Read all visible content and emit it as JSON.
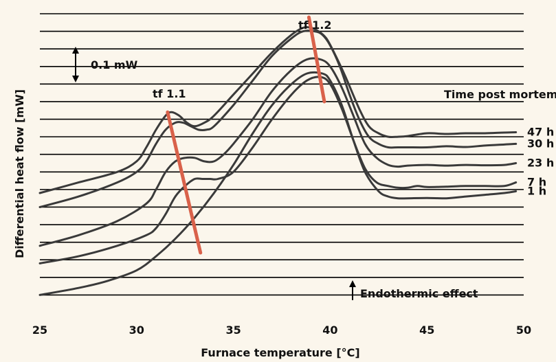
{
  "chart_data": {
    "type": "line",
    "xlabel": "Furnace temperature [°C]",
    "ylabel": "Differential heat flow [mW]",
    "xlim": [
      25,
      50
    ],
    "xticks": [
      25,
      30,
      35,
      40,
      45,
      50
    ],
    "ylim": [
      0,
      0.85
    ],
    "grid": "horizontal",
    "scale_bar": {
      "label": "0.1 mW",
      "value": 0.1
    },
    "legend_title": "Time post mortem",
    "annotations": [
      "Endothermic effect",
      "tf 1.1",
      "tf 1.2"
    ],
    "colors": {
      "curve": "#3a3a3a",
      "marker_line": "#d9614a",
      "background": "#fbf6ec",
      "grid": "#000000"
    },
    "series": [
      {
        "name": "47 h",
        "x": [
          25,
          27,
          29,
          30,
          30.5,
          31,
          31.5,
          31.8,
          32.2,
          32.6,
          33,
          33.5,
          34,
          35,
          36,
          37,
          38,
          38.6,
          39,
          39.4,
          39.8,
          40.2,
          40.8,
          41.5,
          42,
          42.5,
          43,
          43.5,
          44,
          45,
          46,
          47,
          48,
          49,
          49.6
        ],
        "y": [
          0.34,
          0.37,
          0.4,
          0.43,
          0.47,
          0.52,
          0.56,
          0.57,
          0.56,
          0.54,
          0.53,
          0.54,
          0.56,
          0.62,
          0.68,
          0.74,
          0.79,
          0.81,
          0.81,
          0.8,
          0.78,
          0.74,
          0.67,
          0.58,
          0.53,
          0.51,
          0.5,
          0.5,
          0.502,
          0.51,
          0.508,
          0.51,
          0.51,
          0.512,
          0.513
        ]
      },
      {
        "name": "30 h",
        "x": [
          25,
          27,
          29,
          30,
          30.5,
          31,
          31.5,
          32,
          32.4,
          32.8,
          33.2,
          33.6,
          34,
          35,
          36,
          37,
          38,
          38.6,
          39.2,
          39.6,
          40,
          40.5,
          41,
          41.5,
          42,
          42.5,
          43,
          43.5,
          44,
          45,
          46,
          47,
          48,
          49,
          49.6
        ],
        "y": [
          0.3,
          0.33,
          0.37,
          0.4,
          0.43,
          0.48,
          0.52,
          0.54,
          0.54,
          0.53,
          0.52,
          0.52,
          0.53,
          0.59,
          0.66,
          0.73,
          0.78,
          0.8,
          0.8,
          0.79,
          0.76,
          0.7,
          0.62,
          0.55,
          0.5,
          0.48,
          0.47,
          0.47,
          0.47,
          0.47,
          0.473,
          0.471,
          0.475,
          0.478,
          0.48
        ]
      },
      {
        "name": "23 h",
        "x": [
          25,
          27,
          29,
          30.5,
          31,
          31.5,
          32,
          32.5,
          33,
          33.5,
          34,
          34.5,
          35,
          36,
          37,
          38,
          38.8,
          39.5,
          40,
          40.6,
          41.2,
          41.8,
          42.4,
          43,
          43.5,
          44,
          45,
          46,
          47,
          48,
          49,
          49.6
        ],
        "y": [
          0.19,
          0.22,
          0.26,
          0.31,
          0.35,
          0.4,
          0.43,
          0.44,
          0.44,
          0.43,
          0.43,
          0.45,
          0.48,
          0.55,
          0.63,
          0.69,
          0.72,
          0.72,
          0.7,
          0.64,
          0.56,
          0.48,
          0.44,
          0.42,
          0.415,
          0.418,
          0.42,
          0.418,
          0.42,
          0.419,
          0.42,
          0.425
        ]
      },
      {
        "name": "7 h",
        "x": [
          25,
          27,
          29,
          30.5,
          31,
          31.5,
          32,
          32.5,
          33,
          33.4,
          33.8,
          34.2,
          35,
          36,
          37,
          38,
          38.8,
          39.5,
          40,
          40.6,
          41.2,
          41.8,
          42.4,
          43,
          43.5,
          44,
          44.5,
          45,
          46,
          47,
          48,
          49,
          49.6
        ],
        "y": [
          0.14,
          0.16,
          0.19,
          0.22,
          0.24,
          0.28,
          0.33,
          0.36,
          0.38,
          0.38,
          0.38,
          0.38,
          0.4,
          0.47,
          0.55,
          0.62,
          0.66,
          0.67,
          0.65,
          0.58,
          0.49,
          0.41,
          0.37,
          0.36,
          0.355,
          0.355,
          0.36,
          0.357,
          0.358,
          0.36,
          0.36,
          0.36,
          0.37
        ]
      },
      {
        "name": "1 h",
        "x": [
          25,
          27,
          28.5,
          30,
          31,
          32,
          33,
          34,
          35,
          36,
          37,
          38,
          38.8,
          39.6,
          40,
          40.6,
          41.2,
          41.8,
          42.5,
          43,
          43.5,
          44,
          45,
          46,
          47,
          48,
          49,
          49.6
        ],
        "y": [
          0.05,
          0.07,
          0.09,
          0.12,
          0.16,
          0.21,
          0.27,
          0.34,
          0.42,
          0.51,
          0.59,
          0.65,
          0.68,
          0.68,
          0.66,
          0.59,
          0.49,
          0.4,
          0.345,
          0.33,
          0.325,
          0.325,
          0.326,
          0.325,
          0.33,
          0.335,
          0.34,
          0.345
        ]
      }
    ],
    "marker_lines": [
      {
        "label": "tf 1.1",
        "x": [
          31.6,
          33.3
        ],
        "y": [
          0.57,
          0.17
        ]
      },
      {
        "label": "tf 1.2",
        "x": [
          38.9,
          39.7
        ],
        "y": [
          0.84,
          0.6
        ]
      }
    ]
  }
}
